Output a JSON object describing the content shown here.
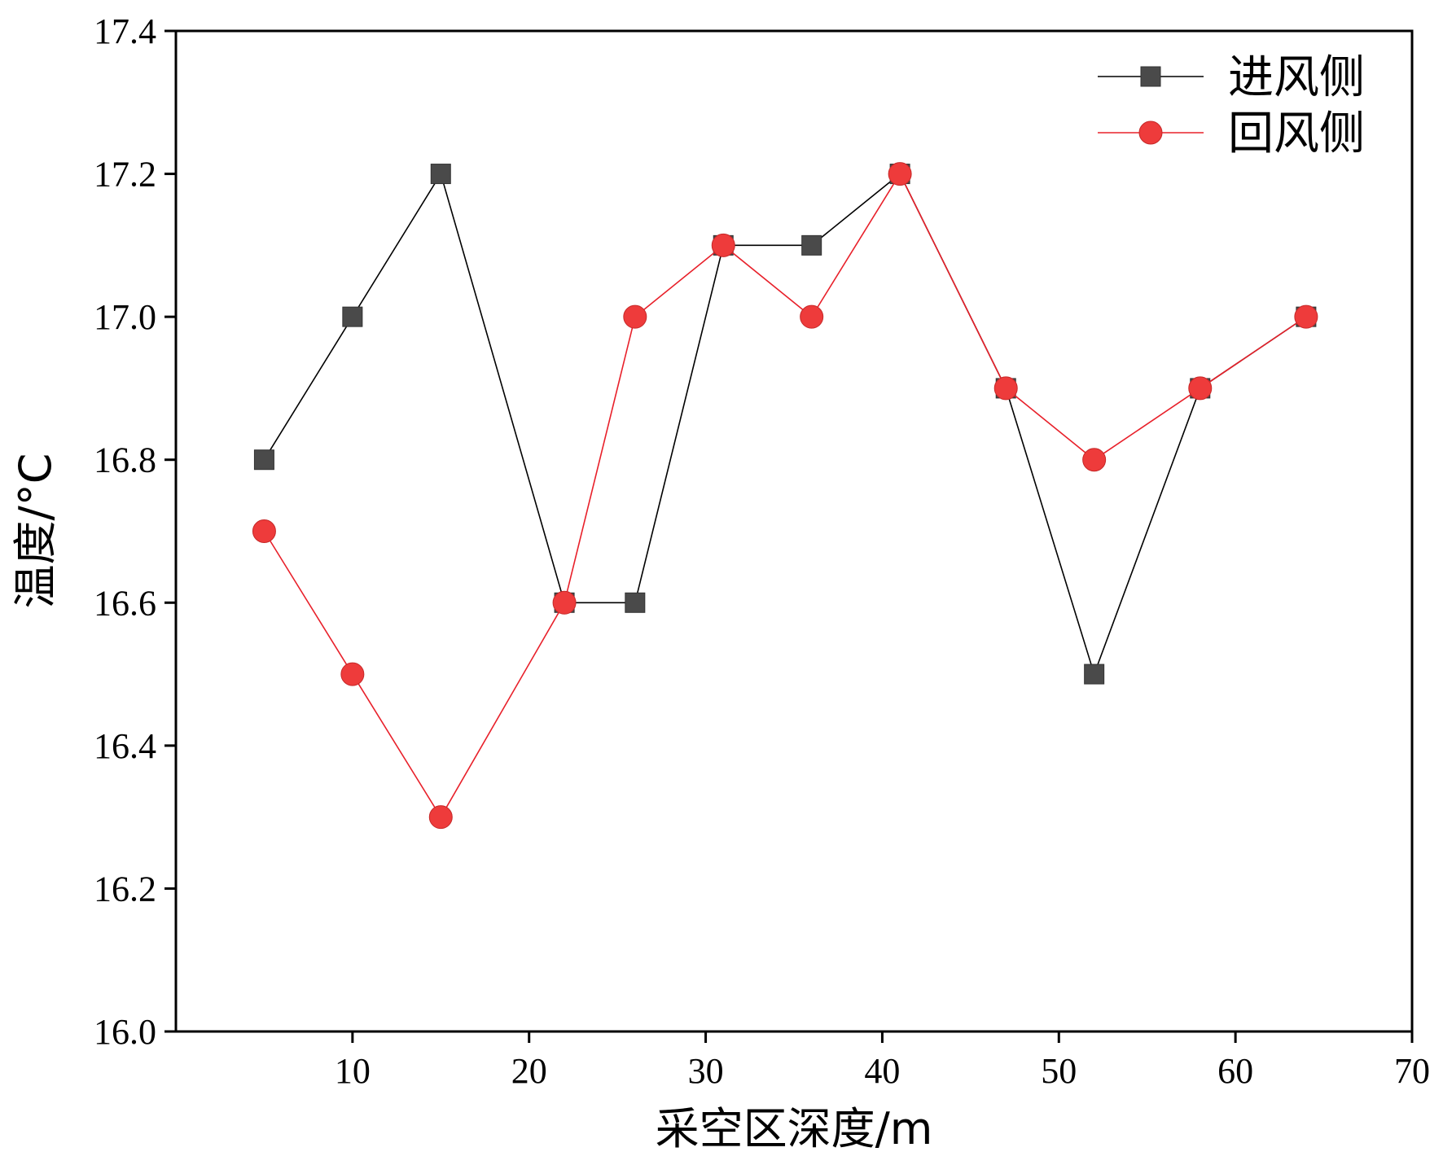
{
  "chart_data": {
    "type": "line",
    "xlabel": "采空区深度/m",
    "ylabel": "温度/°C",
    "xlim": [
      0,
      70
    ],
    "ylim": [
      16.0,
      17.4
    ],
    "xticks": [
      10,
      20,
      30,
      40,
      50,
      60,
      70
    ],
    "yticks": [
      "16.0",
      "16.2",
      "16.4",
      "16.6",
      "16.8",
      "17.0",
      "17.2",
      "17.4"
    ],
    "grid": false,
    "legend_position": "top-right",
    "x": [
      5,
      10,
      15,
      22,
      26,
      31,
      36,
      41,
      47,
      52,
      58,
      64
    ],
    "series": [
      {
        "name": "进风侧",
        "marker": "square",
        "color": "#4a4a4a",
        "line_color": "#000000",
        "values": [
          16.8,
          17.0,
          17.2,
          16.6,
          16.6,
          17.1,
          17.1,
          17.2,
          16.9,
          16.5,
          16.9,
          17.0
        ]
      },
      {
        "name": "回风侧",
        "marker": "circle",
        "color": "#ee3b3b",
        "line_color": "#e8202a",
        "values": [
          16.7,
          16.5,
          16.3,
          16.6,
          17.0,
          17.1,
          17.0,
          17.2,
          16.9,
          16.8,
          16.9,
          17.0
        ]
      }
    ]
  }
}
